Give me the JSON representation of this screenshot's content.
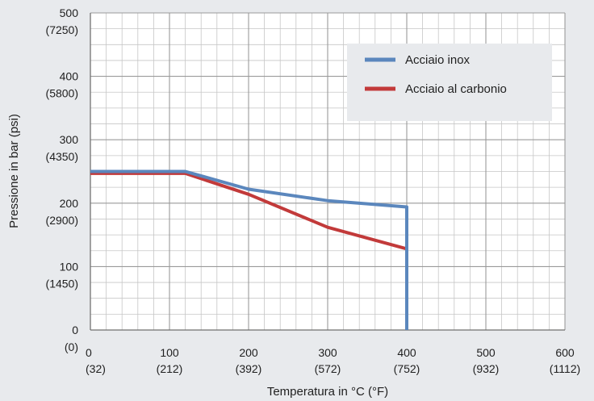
{
  "chart_data": {
    "type": "line",
    "xlabel": "Temperatura in °C (°F)",
    "ylabel": "Pressione in bar (psi)",
    "xlim": [
      0,
      600
    ],
    "ylim": [
      0,
      500
    ],
    "x_ticks": [
      {
        "value": 0,
        "label": "0",
        "sub": "(32)"
      },
      {
        "value": 100,
        "label": "100",
        "sub": "(212)"
      },
      {
        "value": 200,
        "label": "200",
        "sub": "(392)"
      },
      {
        "value": 300,
        "label": "300",
        "sub": "(572)"
      },
      {
        "value": 400,
        "label": "400",
        "sub": "(752)"
      },
      {
        "value": 500,
        "label": "500",
        "sub": "(932)"
      },
      {
        "value": 600,
        "label": "600",
        "sub": "(1112)"
      }
    ],
    "y_ticks": [
      {
        "value": 0,
        "label": "0",
        "sub": "(0)"
      },
      {
        "value": 100,
        "label": "100",
        "sub": "(1450)"
      },
      {
        "value": 200,
        "label": "200",
        "sub": "(2900)"
      },
      {
        "value": 300,
        "label": "300",
        "sub": "(4350)"
      },
      {
        "value": 400,
        "label": "400",
        "sub": "(5800)"
      },
      {
        "value": 500,
        "label": "500",
        "sub": "(7250)"
      }
    ],
    "grid": true,
    "legend_position": "top-right",
    "series": [
      {
        "name": "Acciaio inox",
        "color": "#5b87bd",
        "x": [
          0,
          120,
          200,
          300,
          400,
          400
        ],
        "y": [
          250,
          250,
          222,
          204,
          194,
          0
        ]
      },
      {
        "name": "Acciaio al carbonio",
        "color": "#c23a3a",
        "x": [
          0,
          120,
          200,
          300,
          400,
          400
        ],
        "y": [
          247,
          247,
          214,
          162,
          128,
          0
        ]
      }
    ]
  }
}
